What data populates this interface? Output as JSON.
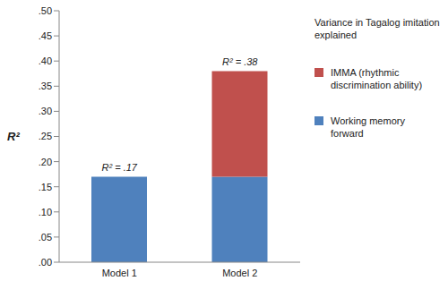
{
  "chart_data": {
    "type": "bar",
    "stacked": true,
    "categories": [
      "Model 1",
      "Model 2"
    ],
    "series": [
      {
        "name": "Working memory forward",
        "color": "#4f81bd",
        "values": [
          0.17,
          0.17
        ]
      },
      {
        "name": "IMMA (rhythmic discrimination ability)",
        "color": "#c0504d",
        "values": [
          0,
          0.21
        ]
      }
    ],
    "annotations": [
      "R² = .17",
      "R² = .38"
    ],
    "y_label": "R²",
    "legend_title": "Variance in Tagalog imitation explained",
    "ylim": [
      0,
      0.5
    ],
    "yticks": [
      {
        "value": 0,
        "label": ".00"
      },
      {
        "value": 0.05,
        "label": ".05"
      },
      {
        "value": 0.1,
        "label": ".10"
      },
      {
        "value": 0.15,
        "label": ".15"
      },
      {
        "value": 0.2,
        "label": ".20"
      },
      {
        "value": 0.25,
        "label": ".25"
      },
      {
        "value": 0.3,
        "label": ".30"
      },
      {
        "value": 0.35,
        "label": ".35"
      },
      {
        "value": 0.4,
        "label": ".40"
      },
      {
        "value": 0.45,
        "label": ".45"
      },
      {
        "value": 0.5,
        "label": ".50"
      }
    ],
    "grid": false,
    "legend": "right"
  }
}
